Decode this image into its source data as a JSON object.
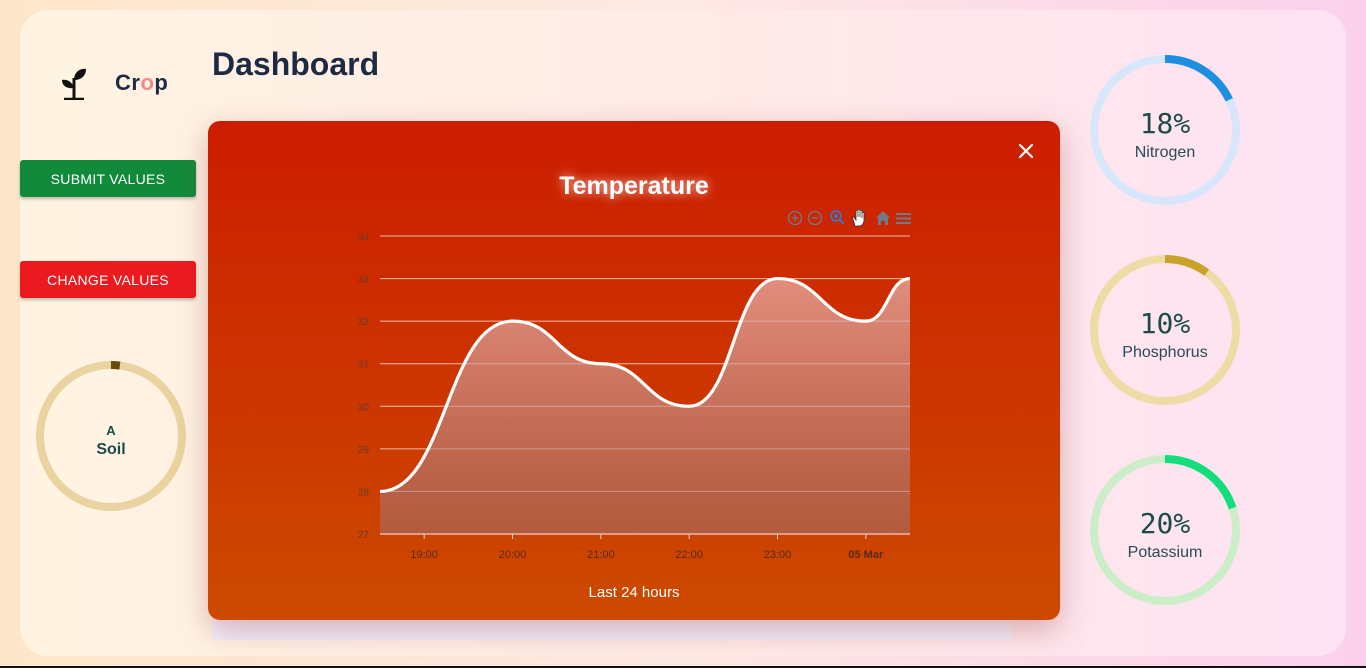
{
  "app": {
    "logo_prefix": "Cr",
    "logo_accent": "o",
    "logo_suffix": "p"
  },
  "page": {
    "title": "Dashboard"
  },
  "buttons": {
    "submit": "Submit Values",
    "change": "Change Values"
  },
  "soil": {
    "grade": "A",
    "label": "Soil",
    "fill": 0.02,
    "color": "#6b4a12",
    "track": "#ead3a0"
  },
  "nutrients": [
    {
      "label": "Nitrogen",
      "value": "18%",
      "fill": 0.18,
      "color": "#1e8fe0",
      "track": "#d8e6fb"
    },
    {
      "label": "Phosphorus",
      "value": "10%",
      "fill": 0.1,
      "color": "#c9a22a",
      "track": "#eedba6"
    },
    {
      "label": "Potassium",
      "value": "20%",
      "fill": 0.2,
      "color": "#12de7e",
      "track": "#cbeec8"
    }
  ],
  "modal": {
    "title": "Temperature",
    "caption": "Last 24 hours"
  },
  "chart_data": {
    "type": "area",
    "title": "Temperature",
    "xlabel": "Last 24 hours",
    "x": [
      "18:30",
      "20:00",
      "21:00",
      "22:00",
      "23:00",
      "00:00",
      "00:30"
    ],
    "values": [
      28,
      32,
      31,
      30,
      33,
      32,
      33
    ],
    "x_ticks": [
      "19:00",
      "20:00",
      "21:00",
      "22:00",
      "23:00",
      "05 Mar"
    ],
    "ylim": [
      27,
      34
    ],
    "y_ticks": [
      27,
      28,
      29,
      30,
      31,
      32,
      33,
      34
    ],
    "grid": true,
    "toolbar": [
      "zoom-in-icon",
      "zoom-out-icon",
      "selection-zoom-icon",
      "pan-hand-icon",
      "home-icon",
      "menu-icon"
    ]
  }
}
